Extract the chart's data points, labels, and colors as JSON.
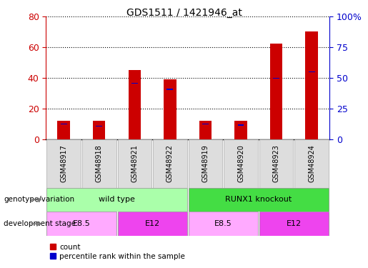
{
  "title": "GDS1511 / 1421946_at",
  "samples": [
    "GSM48917",
    "GSM48918",
    "GSM48921",
    "GSM48922",
    "GSM48919",
    "GSM48920",
    "GSM48923",
    "GSM48924"
  ],
  "count_values": [
    12,
    12,
    45,
    39,
    12,
    12,
    62,
    70
  ],
  "percentile_values": [
    13,
    11,
    46,
    41,
    13,
    12,
    50,
    55
  ],
  "left_ylim": [
    0,
    80
  ],
  "right_ylim": [
    0,
    100
  ],
  "left_yticks": [
    0,
    20,
    40,
    60,
    80
  ],
  "right_yticks": [
    0,
    25,
    50,
    75,
    100
  ],
  "right_yticklabels": [
    "0",
    "25",
    "50",
    "75",
    "100%"
  ],
  "count_color": "#CC0000",
  "percentile_color": "#0000CC",
  "genotype_groups": [
    {
      "label": "wild type",
      "start": 0,
      "end": 3,
      "color": "#AAFFAA"
    },
    {
      "label": "RUNX1 knockout",
      "start": 4,
      "end": 7,
      "color": "#44DD44"
    }
  ],
  "stage_groups": [
    {
      "label": "E8.5",
      "start": 0,
      "end": 1,
      "color": "#FFAAFF"
    },
    {
      "label": "E12",
      "start": 2,
      "end": 3,
      "color": "#EE44EE"
    },
    {
      "label": "E8.5",
      "start": 4,
      "end": 5,
      "color": "#FFAAFF"
    },
    {
      "label": "E12",
      "start": 6,
      "end": 7,
      "color": "#EE44EE"
    }
  ],
  "legend_count_label": "count",
  "legend_pct_label": "percentile rank within the sample",
  "xlabel_genotype": "genotype/variation",
  "xlabel_stage": "development stage"
}
